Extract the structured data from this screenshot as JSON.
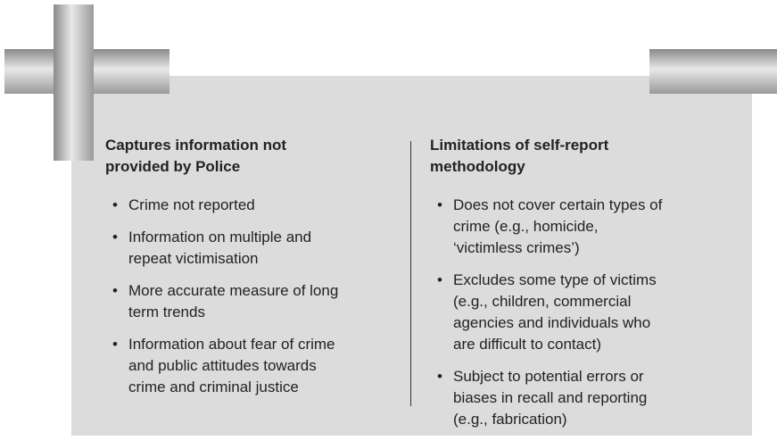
{
  "columns": [
    {
      "heading": [
        "Captures information not",
        "provided by Police"
      ],
      "items": [
        [
          "Crime not reported"
        ],
        [
          "Information on multiple and",
          "repeat victimisation"
        ],
        [
          "More accurate measure of long",
          "term trends"
        ],
        [
          "Information about fear of crime",
          "and public attitudes towards",
          "crime and criminal justice"
        ]
      ]
    },
    {
      "heading": [
        "Limitations of self-report",
        "methodology"
      ],
      "items": [
        [
          "Does not cover certain types of",
          "crime (e.g., homicide,",
          "‘victimless crimes’)"
        ],
        [
          "Excludes some type of victims",
          "(e.g., children, commercial",
          "agencies and individuals who",
          "are difficult to contact)"
        ],
        [
          "Subject to potential errors or",
          "biases in recall and reporting",
          "(e.g., fabrication)"
        ]
      ]
    }
  ]
}
